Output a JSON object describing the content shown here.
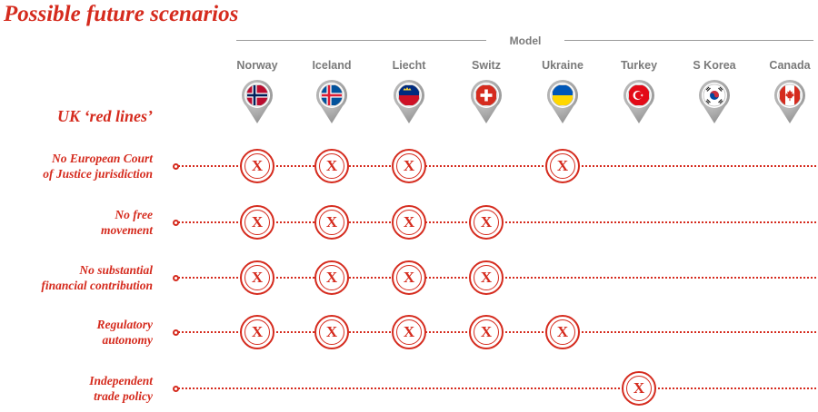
{
  "title": "Possible future scenarios",
  "model_label": "Model",
  "side_title": "UK ‘red lines’",
  "mark_glyph": "X",
  "colors": {
    "accent": "#d52b1e",
    "muted": "#7a7a7a",
    "pin": "#8f8f8f"
  },
  "columns": [
    {
      "label": "Norway",
      "flag": "norway-flag-icon"
    },
    {
      "label": "Iceland",
      "flag": "iceland-flag-icon"
    },
    {
      "label": "Liecht",
      "flag": "liechtenstein-flag-icon"
    },
    {
      "label": "Switz",
      "flag": "switzerland-flag-icon"
    },
    {
      "label": "Ukraine",
      "flag": "ukraine-flag-icon"
    },
    {
      "label": "Turkey",
      "flag": "turkey-flag-icon"
    },
    {
      "label": "S Korea",
      "flag": "south-korea-flag-icon"
    },
    {
      "label": "Canada",
      "flag": "canada-flag-icon"
    }
  ],
  "rows": [
    {
      "lines": [
        "No European Court",
        "of Justice jurisdiction"
      ],
      "marks": [
        0,
        1,
        2,
        4
      ]
    },
    {
      "lines": [
        "No free",
        "movement"
      ],
      "marks": [
        0,
        1,
        2,
        3
      ]
    },
    {
      "lines": [
        "No substantial",
        "financial contribution"
      ],
      "marks": [
        0,
        1,
        2,
        3
      ]
    },
    {
      "lines": [
        "Regulatory",
        "autonomy"
      ],
      "marks": [
        0,
        1,
        2,
        3,
        4
      ]
    },
    {
      "lines": [
        "Independent",
        "trade policy"
      ],
      "marks": [
        5
      ]
    }
  ]
}
